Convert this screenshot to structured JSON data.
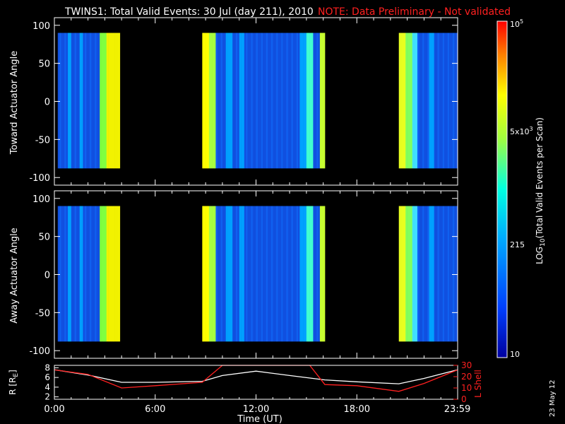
{
  "title": "TWINS1: Total Valid Events: 30 Jul (day 211), 2010",
  "note": "NOTE: Data Preliminary - Not validated",
  "date_stamp": "23 May 12",
  "colors": {
    "frame": "#ffffff",
    "note": "#ff2020",
    "background": "#000000"
  },
  "chart_data": [
    {
      "type": "heatmap",
      "name": "toward",
      "ylabel": "Toward Actuator Angle",
      "ylim": [
        -110,
        110
      ],
      "yticks": [
        100,
        50,
        0,
        -50,
        -100
      ],
      "xlim": [
        0,
        24
      ],
      "data_y_range": [
        -88,
        90
      ],
      "segments": [
        [
          0.2,
          3.9
        ],
        [
          8.8,
          16.1
        ],
        [
          20.5,
          24.0
        ]
      ]
    },
    {
      "type": "heatmap",
      "name": "away",
      "ylabel": "Away Actuator Angle",
      "ylim": [
        -110,
        110
      ],
      "yticks": [
        100,
        50,
        0,
        -50,
        -100
      ],
      "xlim": [
        0,
        24
      ],
      "data_y_range": [
        -88,
        90
      ],
      "segments": [
        [
          0.2,
          3.9
        ],
        [
          8.8,
          16.1
        ],
        [
          20.5,
          24.0
        ]
      ]
    },
    {
      "type": "line",
      "name": "orbit",
      "xlabel": "Time (UT)",
      "xlim": [
        0,
        24
      ],
      "xticks": [
        "0:00",
        "6:00",
        "12:00",
        "18:00",
        "23:59"
      ],
      "xtick_values": [
        0,
        6,
        12,
        18,
        23.98
      ],
      "left_axis": {
        "label": "R [RE]",
        "ylim": [
          1.5,
          8.5
        ],
        "ticks": [
          2,
          4,
          6,
          8
        ]
      },
      "right_axis": {
        "label": "L Shell",
        "ylim": [
          0,
          30
        ],
        "ticks": [
          0,
          10,
          20,
          30
        ]
      },
      "series": [
        {
          "axis": "left",
          "color": "#ffffff",
          "x": [
            0,
            2,
            4,
            6,
            8.8,
            10,
            12,
            14,
            16.1,
            18,
            20.5,
            22,
            24
          ],
          "y": [
            7.6,
            6.5,
            5.0,
            5.0,
            5.2,
            6.4,
            7.3,
            6.4,
            5.5,
            5.1,
            4.7,
            5.8,
            7.6
          ]
        },
        {
          "axis": "right",
          "color": "#ff2020",
          "x": [
            0,
            2,
            4,
            6,
            8.8,
            10,
            10.3,
            15.2,
            16.1,
            18,
            20.5,
            22,
            24
          ],
          "y": [
            26,
            22,
            10,
            12,
            15,
            30,
            31,
            31,
            13,
            12,
            7,
            14,
            26
          ]
        }
      ]
    },
    {
      "type": "colorbar",
      "label": "LOG10(Total Valid Events per Scan)",
      "tick_labels": [
        "10^5",
        "5x10^3",
        "215",
        "10"
      ],
      "tick_values": [
        100000,
        5000,
        215,
        10
      ]
    }
  ],
  "text": {
    "colorbar_ticks": {
      "top": "10",
      "top_sup": "5",
      "mid": "5x10",
      "mid_sup": "3",
      "low": "215",
      "bottom": "10"
    },
    "colorbar_label_parts": {
      "pre": "LOG",
      "sub": "10",
      "post": "(Total Valid Events per Scan)"
    },
    "orbit_left_label_parts": {
      "pre": "R [R",
      "sub": "E",
      "post": "]"
    }
  }
}
